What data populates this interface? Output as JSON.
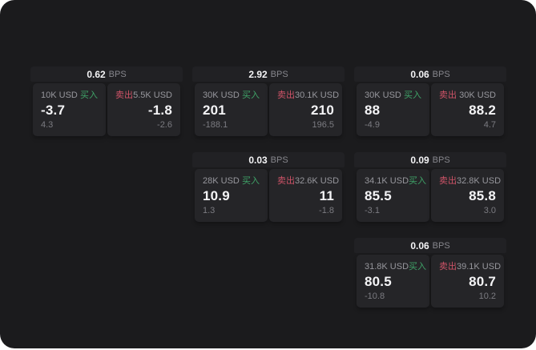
{
  "labels": {
    "bps_unit": "BPS",
    "buy": "买入",
    "sell": "卖出"
  },
  "colors": {
    "canvas_bg": "#1b1b1d",
    "header_bg": "#212124",
    "panel_bg": "#252528",
    "buy": "#3fa368",
    "sell": "#d05468",
    "value_text": "#f4f4f6",
    "label_text": "#97979d",
    "sub_text": "#7b7b81"
  },
  "cards": [
    {
      "bps": "0.62",
      "row": 1,
      "col": 1,
      "buy": {
        "amount": "10K USD",
        "value": "-3.7",
        "sub": "4.3"
      },
      "sell": {
        "amount": "5.5K USD",
        "value": "-1.8",
        "sub": "-2.6"
      }
    },
    {
      "bps": "2.92",
      "row": 1,
      "col": 2,
      "buy": {
        "amount": "30K USD",
        "value": "201",
        "sub": "-188.1"
      },
      "sell": {
        "amount": "30.1K USD",
        "value": "210",
        "sub": "196.5"
      }
    },
    {
      "bps": "0.06",
      "row": 1,
      "col": 3,
      "buy": {
        "amount": "30K USD",
        "value": "88",
        "sub": "-4.9"
      },
      "sell": {
        "amount": "30K USD",
        "value": "88.2",
        "sub": "4.7"
      }
    },
    {
      "bps": "0.03",
      "row": 2,
      "col": 2,
      "buy": {
        "amount": "28K USD",
        "value": "10.9",
        "sub": "1.3"
      },
      "sell": {
        "amount": "32.6K USD",
        "value": "11",
        "sub": "-1.8"
      }
    },
    {
      "bps": "0.09",
      "row": 2,
      "col": 3,
      "buy": {
        "amount": "34.1K USD",
        "value": "85.5",
        "sub": "-3.1"
      },
      "sell": {
        "amount": "32.8K USD",
        "value": "85.8",
        "sub": "3.0"
      }
    },
    {
      "bps": "0.06",
      "row": 3,
      "col": 3,
      "buy": {
        "amount": "31.8K USD",
        "value": "80.5",
        "sub": "-10.8"
      },
      "sell": {
        "amount": "39.1K USD",
        "value": "80.7",
        "sub": "10.2"
      }
    }
  ]
}
